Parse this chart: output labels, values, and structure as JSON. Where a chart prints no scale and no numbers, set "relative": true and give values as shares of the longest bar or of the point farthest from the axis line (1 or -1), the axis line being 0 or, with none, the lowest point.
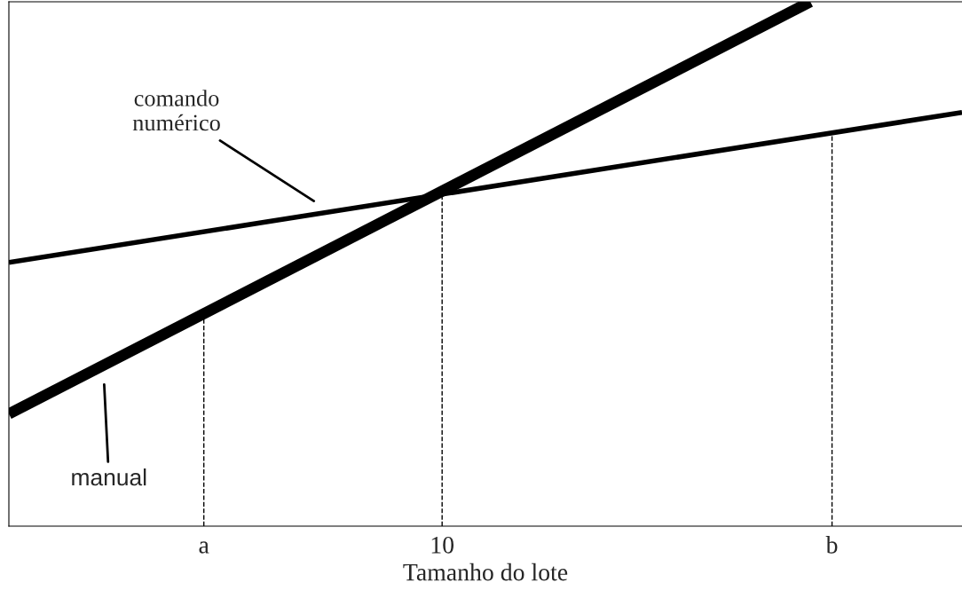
{
  "chart_data": {
    "type": "line",
    "relative": true,
    "xlabel": "Tamanho do lote",
    "categories": [
      null,
      null,
      null,
      null,
      null,
      null,
      null,
      null,
      null,
      "a",
      null,
      null,
      null,
      null,
      null,
      null,
      null,
      null,
      null,
      null,
      "10",
      null,
      null,
      null,
      null,
      null,
      null,
      null,
      null,
      null,
      null,
      null,
      null,
      null,
      null,
      null,
      null,
      null,
      "b",
      null,
      null,
      null,
      null,
      null,
      null
    ],
    "series": [
      {
        "color": "#000000",
        "values": [
          0.214,
          null,
          null,
          null,
          null,
          null,
          null,
          null,
          null,
          null,
          null,
          null,
          null,
          null,
          null,
          null,
          null,
          null,
          null,
          null,
          null,
          null,
          null,
          null,
          null,
          null,
          null,
          null,
          null,
          null,
          null,
          null,
          null,
          null,
          null,
          null,
          null,
          1,
          null,
          null,
          null,
          null,
          null,
          null,
          null
        ]
      },
      {
        "color": "#000000",
        "values": [
          0.503,
          null,
          null,
          null,
          null,
          null,
          null,
          null,
          null,
          null,
          null,
          null,
          null,
          null,
          null,
          null,
          null,
          null,
          null,
          null,
          null,
          null,
          null,
          null,
          null,
          null,
          null,
          null,
          null,
          null,
          null,
          null,
          null,
          null,
          null,
          null,
          null,
          null,
          null,
          null,
          null,
          null,
          null,
          null,
          0.789
        ]
      }
    ],
    "ref_lines": [
      {
        "axis": "x",
        "value": "a",
        "line_style": "dashed",
        "color": "#000000"
      },
      {
        "axis": "x",
        "value": "10",
        "line_style": "dashed",
        "color": "#000000"
      },
      {
        "axis": "x",
        "value": "b",
        "line_style": "dashed",
        "color": "#000000"
      }
    ],
    "annotations": [
      "comando\nnumérico",
      "manual"
    ],
    "grid": false,
    "legend": false,
    "marker": "none",
    "line_style": "solid"
  }
}
